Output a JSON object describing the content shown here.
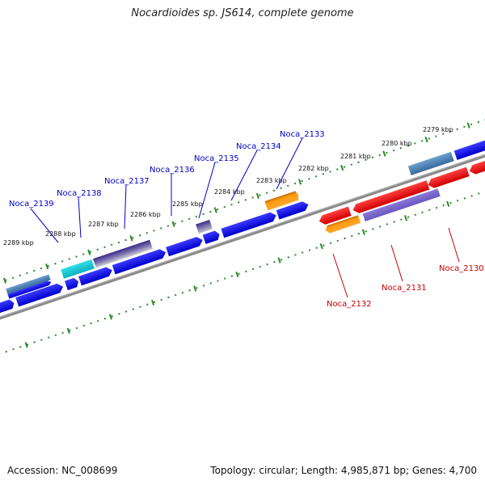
{
  "title": "Nocardioides sp. JS614, complete genome",
  "footer": {
    "accession": "Accession: NC_008699",
    "summary": "Topology: circular; Length: 4,985,871 bp; Genes: 4,700"
  },
  "colors": {
    "forward_label": "#0000c8",
    "reverse_label": "#c80000",
    "tick": "#2a8a2a",
    "backbone": "#8a8a8a"
  },
  "scale_labels": [
    "2289 kbp",
    "2288 kbp",
    "2287 kbp",
    "2286 kbp",
    "2285 kbp",
    "2284 kbp",
    "2283 kbp",
    "2282 kbp",
    "2281 kbp",
    "2280 kbp",
    "2279 kbp"
  ],
  "forward_labels": [
    "Noca_2139",
    "Noca_2138",
    "Noca_2137",
    "Noca_2136",
    "Noca_2135",
    "Noca_2134",
    "Noca_2133"
  ],
  "reverse_labels": [
    "Noca_2132",
    "Noca_2131",
    "Noca_2130"
  ]
}
